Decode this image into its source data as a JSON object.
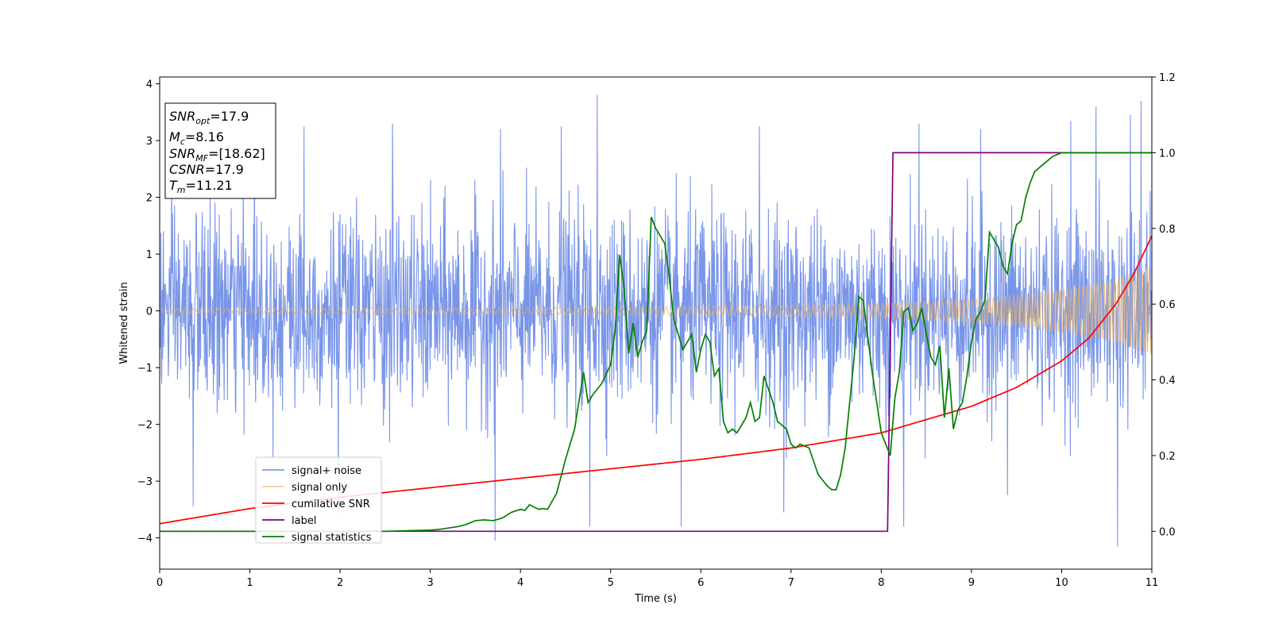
{
  "chart_data": {
    "type": "line",
    "xlabel": "Time (s)",
    "ylabel": "Whitened strain",
    "xlim": [
      0,
      11
    ],
    "ylim_left": [
      -4.55,
      4.12
    ],
    "ylim_right": [
      -0.1,
      1.2
    ],
    "x_ticks": [
      "0",
      "1",
      "2",
      "3",
      "4",
      "5",
      "6",
      "7",
      "8",
      "9",
      "10",
      "11"
    ],
    "y_left_ticks": [
      "4",
      "3",
      "2",
      "1",
      "0",
      "−1",
      "−2",
      "−3",
      "−4"
    ],
    "y_left_tick_values": [
      4,
      3,
      2,
      1,
      0,
      -1,
      -2,
      -3,
      -4
    ],
    "y_right_ticks": [
      "1.2",
      "1.0",
      "0.8",
      "0.6",
      "0.4",
      "0.2",
      "0.0"
    ],
    "y_right_tick_values": [
      1.2,
      1.0,
      0.8,
      0.6,
      0.4,
      0.2,
      0.0
    ],
    "grid": false,
    "legend_position": "lower-left",
    "info_box": {
      "snr_opt_base": "SNR",
      "snr_opt_sub": "opt",
      "snr_opt_value": "=17.9",
      "mc_base": "M",
      "mc_sub": "c",
      "mc_value": "=8.16",
      "snr_mf_base": "SNR",
      "snr_mf_sub": "MF",
      "snr_mf_value": "=[18.62]",
      "csnr_text": "CSNR",
      "csnr_value": "=17.9",
      "tm_base": "T",
      "tm_sub": "m",
      "tm_value": "=11.21"
    },
    "series": [
      {
        "name": "signal+ noise",
        "axis": "left",
        "color": "#6a8ae6",
        "style": "noise",
        "envelope_note": "dense noise roughly within ±2.5 with spikes to ±3.5",
        "spikes": [
          [
            0.37,
            -3.45
          ],
          [
            1.05,
            2.9
          ],
          [
            1.6,
            3.25
          ],
          [
            1.98,
            -3.6
          ],
          [
            2.58,
            3.3
          ],
          [
            3.72,
            -4.05
          ],
          [
            3.78,
            3.2
          ],
          [
            4.45,
            3.25
          ],
          [
            4.77,
            -3.8
          ],
          [
            4.85,
            3.8
          ],
          [
            5.78,
            -3.8
          ],
          [
            6.65,
            3.25
          ],
          [
            6.92,
            -3.55
          ],
          [
            8.25,
            -3.8
          ],
          [
            8.42,
            3.3
          ],
          [
            9.1,
            3.2
          ],
          [
            9.4,
            -3.25
          ],
          [
            10.1,
            3.35
          ],
          [
            10.38,
            3.6
          ],
          [
            10.62,
            -4.15
          ],
          [
            10.76,
            3.45
          ],
          [
            10.88,
            3.7
          ]
        ]
      },
      {
        "name": "signal only",
        "axis": "left",
        "color": "#f0b45a",
        "style": "chirp",
        "amplitude": [
          [
            0,
            0.04
          ],
          [
            4,
            0.06
          ],
          [
            7,
            0.1
          ],
          [
            8,
            0.13
          ],
          [
            9,
            0.2
          ],
          [
            10,
            0.38
          ],
          [
            10.5,
            0.52
          ],
          [
            11,
            0.78
          ]
        ]
      },
      {
        "name": "cumilative SNR",
        "axis": "right",
        "color": "#ff0000",
        "x": [
          0,
          1,
          2,
          3,
          4,
          5,
          6,
          7,
          8,
          9,
          9.5,
          10,
          10.3,
          10.6,
          10.8,
          11
        ],
        "y": [
          0.02,
          0.06,
          0.09,
          0.115,
          0.14,
          0.165,
          0.19,
          0.22,
          0.26,
          0.33,
          0.38,
          0.45,
          0.51,
          0.6,
          0.68,
          0.78
        ]
      },
      {
        "name": "label",
        "axis": "right",
        "color": "#800080",
        "x": [
          0,
          8.07,
          8.13,
          11
        ],
        "y": [
          0.0,
          0.0,
          1.0,
          1.0
        ]
      },
      {
        "name": "signal statistics",
        "axis": "right",
        "color": "#008000",
        "x": [
          0,
          1,
          2,
          2.5,
          3,
          3.1,
          3.3,
          3.4,
          3.5,
          3.6,
          3.7,
          3.8,
          3.9,
          4.0,
          4.05,
          4.1,
          4.2,
          4.25,
          4.3,
          4.4,
          4.5,
          4.6,
          4.7,
          4.75,
          4.8,
          4.9,
          5.0,
          5.05,
          5.1,
          5.15,
          5.2,
          5.25,
          5.3,
          5.35,
          5.4,
          5.45,
          5.5,
          5.55,
          5.6,
          5.65,
          5.7,
          5.8,
          5.9,
          5.95,
          6.0,
          6.05,
          6.1,
          6.15,
          6.2,
          6.25,
          6.3,
          6.35,
          6.4,
          6.5,
          6.55,
          6.6,
          6.65,
          6.7,
          6.8,
          6.85,
          6.9,
          6.95,
          7.0,
          7.05,
          7.1,
          7.2,
          7.3,
          7.4,
          7.45,
          7.5,
          7.55,
          7.6,
          7.7,
          7.75,
          7.8,
          7.9,
          8.0,
          8.05,
          8.1,
          8.15,
          8.2,
          8.25,
          8.3,
          8.35,
          8.4,
          8.45,
          8.5,
          8.55,
          8.6,
          8.65,
          8.7,
          8.75,
          8.8,
          8.85,
          8.9,
          8.95,
          9.0,
          9.05,
          9.1,
          9.15,
          9.2,
          9.25,
          9.3,
          9.35,
          9.4,
          9.45,
          9.5,
          9.55,
          9.6,
          9.65,
          9.7,
          9.75,
          9.8,
          9.85,
          9.9,
          10.0,
          10.1,
          10.3,
          10.5,
          11
        ],
        "y": [
          0.0,
          0.0,
          0.0,
          0.0,
          0.003,
          0.005,
          0.012,
          0.018,
          0.028,
          0.03,
          0.028,
          0.035,
          0.05,
          0.058,
          0.055,
          0.07,
          0.058,
          0.06,
          0.058,
          0.1,
          0.19,
          0.27,
          0.42,
          0.34,
          0.36,
          0.39,
          0.44,
          0.53,
          0.73,
          0.64,
          0.47,
          0.55,
          0.46,
          0.5,
          0.53,
          0.83,
          0.8,
          0.78,
          0.76,
          0.67,
          0.56,
          0.48,
          0.52,
          0.42,
          0.48,
          0.52,
          0.5,
          0.41,
          0.43,
          0.29,
          0.26,
          0.27,
          0.26,
          0.3,
          0.34,
          0.29,
          0.3,
          0.41,
          0.34,
          0.29,
          0.28,
          0.27,
          0.23,
          0.22,
          0.23,
          0.22,
          0.15,
          0.12,
          0.11,
          0.11,
          0.15,
          0.22,
          0.46,
          0.62,
          0.61,
          0.42,
          0.26,
          0.23,
          0.2,
          0.35,
          0.42,
          0.58,
          0.59,
          0.53,
          0.55,
          0.59,
          0.52,
          0.46,
          0.44,
          0.49,
          0.3,
          0.43,
          0.27,
          0.32,
          0.34,
          0.41,
          0.5,
          0.56,
          0.58,
          0.61,
          0.79,
          0.77,
          0.75,
          0.7,
          0.68,
          0.76,
          0.81,
          0.82,
          0.88,
          0.92,
          0.95,
          0.96,
          0.97,
          0.98,
          0.99,
          1.0,
          1.0,
          1.0,
          1.0,
          1.0
        ]
      }
    ]
  }
}
